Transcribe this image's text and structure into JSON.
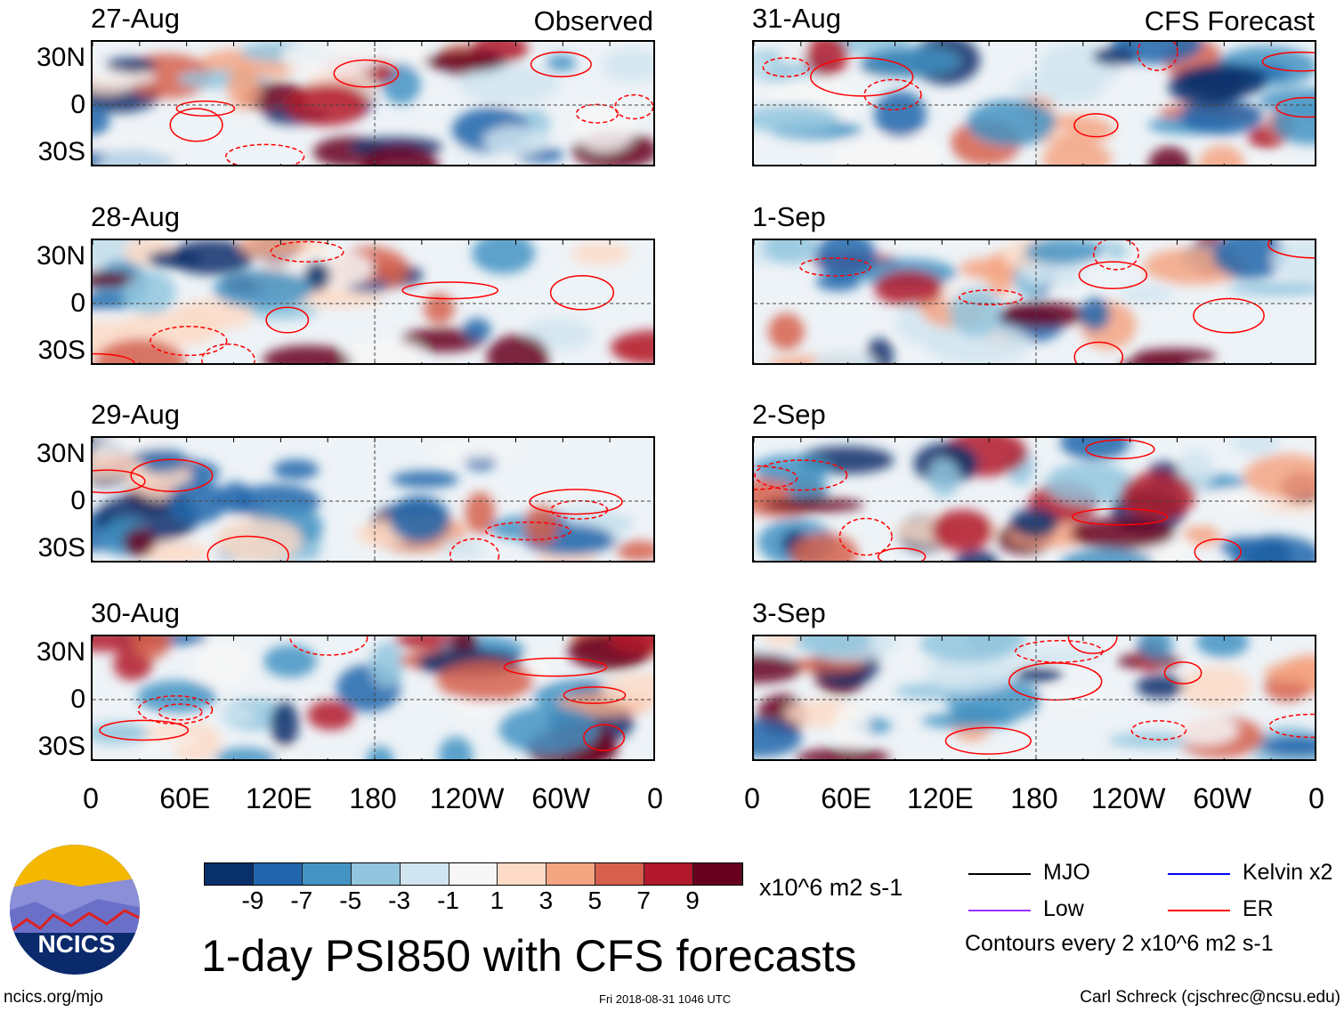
{
  "chart_data": {
    "type": "heatmap",
    "title": "1-day PSI850 with CFS forecasts",
    "variable": "PSI850 anomaly",
    "units": "x10^6 m2 s-1",
    "columns": [
      {
        "label": "Observed",
        "panels": [
          "27-Aug",
          "28-Aug",
          "29-Aug",
          "30-Aug"
        ]
      },
      {
        "label": "CFS Forecast",
        "panels": [
          "31-Aug",
          "1-Sep",
          "2-Sep",
          "3-Sep"
        ]
      }
    ],
    "x_ticks": [
      "0",
      "60E",
      "120E",
      "180",
      "120W",
      "60W",
      "0"
    ],
    "y_ticks": [
      "30N",
      "0",
      "30S"
    ],
    "colorbar": {
      "levels": [
        "-9",
        "-7",
        "-5",
        "-3",
        "-1",
        "1",
        "3",
        "5",
        "7",
        "9"
      ],
      "colors": [
        "#08306b",
        "#2166ac",
        "#4393c3",
        "#92c5de",
        "#d1e5f0",
        "#f7f7f7",
        "#fddbc7",
        "#f4a582",
        "#d6604d",
        "#b2182b",
        "#67001f"
      ]
    },
    "legend": [
      {
        "label": "MJO",
        "color": "#000000"
      },
      {
        "label": "Kelvin x2",
        "color": "#0000ff"
      },
      {
        "label": "Low",
        "color": "#9b30ff"
      },
      {
        "label": "ER",
        "color": "#ff0000"
      }
    ],
    "contour_note": "Contours every 2 x10^6 m2 s-1"
  },
  "footer": {
    "logo_text": "NCICS",
    "url": "ncics.org/mjo",
    "timestamp": "Fri 2018-08-31 1046 UTC",
    "author": "Carl Schreck (cjschrec@ncsu.edu)"
  }
}
